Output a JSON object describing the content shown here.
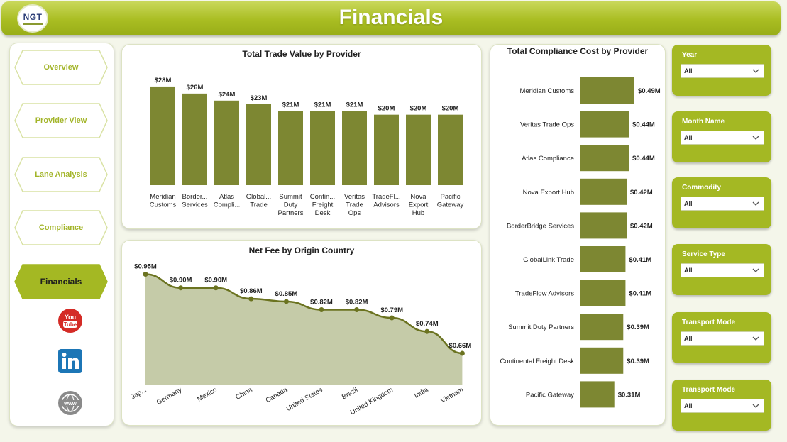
{
  "header": {
    "title": "Financials",
    "logo_text": "NGT"
  },
  "nav": {
    "items": [
      {
        "label": "Overview",
        "active": false
      },
      {
        "label": "Provider View",
        "active": false
      },
      {
        "label": "Lane Analysis",
        "active": false
      },
      {
        "label": "Compliance",
        "active": false
      },
      {
        "label": "Financials",
        "active": true
      }
    ],
    "social": [
      {
        "icon": "youtube-icon",
        "label": "You Tube"
      },
      {
        "icon": "linkedin-icon",
        "label": "in"
      },
      {
        "icon": "globe-icon",
        "label": "www"
      }
    ]
  },
  "colors": {
    "accent": "#a4b823",
    "bar": "#7d8732",
    "line": "#6b7320",
    "area": "#c5cba8"
  },
  "slicers": [
    {
      "label": "Year",
      "value": "All"
    },
    {
      "label": "Month Name",
      "value": "All"
    },
    {
      "label": "Commodity",
      "value": "All"
    },
    {
      "label": "Service Type",
      "value": "All"
    },
    {
      "label": "Transport Mode",
      "value": "All"
    },
    {
      "label": "Transport Mode",
      "value": "All"
    }
  ],
  "chart_data": [
    {
      "type": "bar",
      "title": "Total Trade Value by Provider",
      "categories": [
        [
          "Meridian",
          "Customs"
        ],
        [
          "Border...",
          "Services"
        ],
        [
          "Atlas",
          "Compli..."
        ],
        [
          "Global...",
          "Trade"
        ],
        [
          "Summit",
          "Duty",
          "Partners"
        ],
        [
          "Contin...",
          "Freight",
          "Desk"
        ],
        [
          "Veritas",
          "Trade",
          "Ops"
        ],
        [
          "TradeFl...",
          "Advisors"
        ],
        [
          "Nova",
          "Export",
          "Hub"
        ],
        [
          "Pacific",
          "Gateway"
        ]
      ],
      "values": [
        28,
        26,
        24,
        23,
        21,
        21,
        21,
        20,
        20,
        20
      ],
      "labels": [
        "$28M",
        "$26M",
        "$24M",
        "$23M",
        "$21M",
        "$21M",
        "$21M",
        "$20M",
        "$20M",
        "$20M"
      ],
      "ylim": [
        0,
        30
      ],
      "grid": false
    },
    {
      "type": "area",
      "title": "Net Fee by Origin Country",
      "categories": [
        "Jap...",
        "Germany",
        "Mexico",
        "China",
        "Canada",
        "United States",
        "Brazil",
        "United Kingdom",
        "India",
        "Vietnam"
      ],
      "values": [
        0.95,
        0.9,
        0.9,
        0.86,
        0.85,
        0.82,
        0.82,
        0.79,
        0.74,
        0.66
      ],
      "labels": [
        "$0.95M",
        "$0.90M",
        "$0.90M",
        "$0.86M",
        "$0.85M",
        "$0.82M",
        "$0.82M",
        "$0.79M",
        "$0.74M",
        "$0.66M"
      ],
      "ylim": [
        0.6,
        0.98
      ],
      "grid": false
    },
    {
      "type": "bar",
      "orientation": "horizontal",
      "title": "Total Compliance Cost by Provider",
      "categories": [
        "Meridian Customs",
        "Veritas Trade Ops",
        "Atlas Compliance",
        "Nova Export Hub",
        "BorderBridge Services",
        "GlobalLink Trade",
        "TradeFlow Advisors",
        "Summit Duty Partners",
        "Continental Freight Desk",
        "Pacific Gateway"
      ],
      "values": [
        0.49,
        0.44,
        0.44,
        0.42,
        0.42,
        0.41,
        0.41,
        0.39,
        0.39,
        0.31
      ],
      "labels": [
        "$0.49M",
        "$0.44M",
        "$0.44M",
        "$0.42M",
        "$0.42M",
        "$0.41M",
        "$0.41M",
        "$0.39M",
        "$0.39M",
        "$0.31M"
      ],
      "xlim": [
        0,
        0.49
      ],
      "grid": false
    }
  ]
}
